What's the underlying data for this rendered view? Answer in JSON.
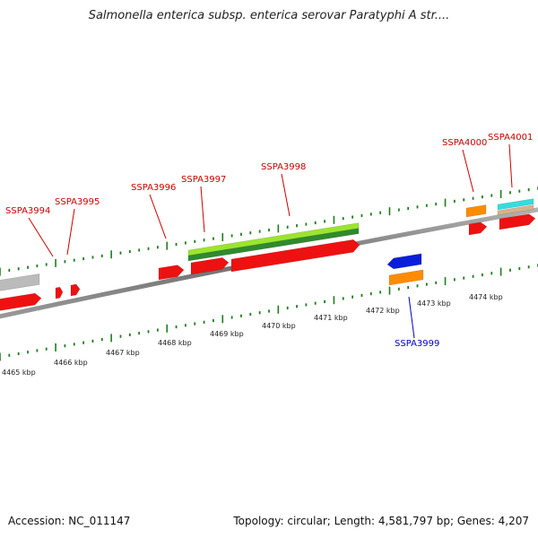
{
  "title": "Salmonella enterica subsp. enterica serovar Paratyphi A str....",
  "footer": {
    "accession": "Accession: NC_011147",
    "summary": "Topology: circular; Length: 4,581,797 bp; Genes: 4,207"
  },
  "colors": {
    "backbone": "#7a7a7a",
    "tick": "#1e7d1e",
    "forward_label": "#cc0000",
    "reverse_label": "#0000cc",
    "cds": "#ee1111",
    "rna": "#ff8c00",
    "misc": "#bbbbbb",
    "lightgreen": "#9be52e",
    "darkgreen": "#2f8a2f",
    "blue": "#0a1ed8",
    "cyan": "#33dddd",
    "tan": "#d2b48c"
  },
  "kbp_labels": [
    "4465 kbp",
    "4466 kbp",
    "4467 kbp",
    "4468 kbp",
    "4469 kbp",
    "4470 kbp",
    "4471 kbp",
    "4472 kbp",
    "4473 kbp",
    "4474 kbp"
  ],
  "gene_labels": [
    {
      "text": "SSPA3994",
      "strand": "forward"
    },
    {
      "text": "SSPA3995",
      "strand": "forward"
    },
    {
      "text": "SSPA3996",
      "strand": "forward"
    },
    {
      "text": "SSPA3997",
      "strand": "forward"
    },
    {
      "text": "SSPA3998",
      "strand": "forward"
    },
    {
      "text": "SSPA4000",
      "strand": "forward"
    },
    {
      "text": "SSPA4001",
      "strand": "forward"
    },
    {
      "text": "SSPA3999",
      "strand": "reverse"
    }
  ]
}
